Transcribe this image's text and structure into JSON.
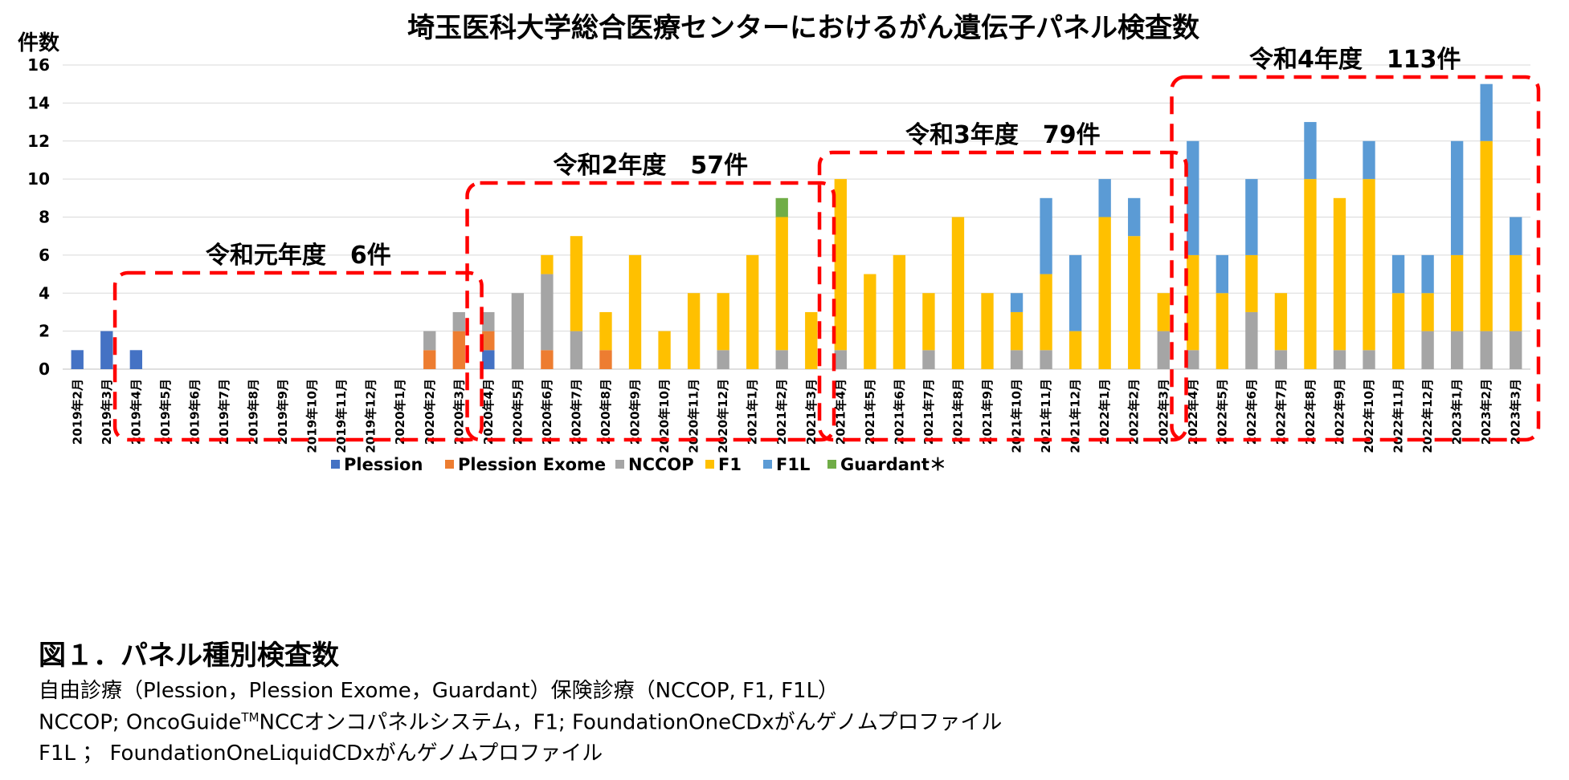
{
  "chart_data": {
    "type": "bar",
    "stacked": true,
    "title": "埼玉医科大学総合医療センターにおけるがん遺伝子パネル検査数",
    "ylabel": "件数",
    "ylim": [
      0,
      16
    ],
    "yticks": [
      "0",
      "2",
      "4",
      "6",
      "8",
      "10",
      "12",
      "14",
      "16"
    ],
    "grid": true,
    "legend_position": "bottom",
    "categories": [
      "2019年2月",
      "2019年3月",
      "2019年4月",
      "2019年5月",
      "2019年6月",
      "2019年7月",
      "2019年8月",
      "2019年9月",
      "2019年10月",
      "2019年11月",
      "2019年12月",
      "2020年1月",
      "2020年2月",
      "2020年3月",
      "2020年4月",
      "2020年5月",
      "2020年6月",
      "2020年7月",
      "2020年8月",
      "2020年9月",
      "2020年10月",
      "2020年11月",
      "2020年12月",
      "2021年1月",
      "2021年2月",
      "2021年3月",
      "2021年4月",
      "2021年5月",
      "2021年6月",
      "2021年7月",
      "2021年8月",
      "2021年9月",
      "2021年10月",
      "2021年11月",
      "2021年12月",
      "2022年1月",
      "2022年2月",
      "2022年3月",
      "2022年4月",
      "2022年5月",
      "2022年6月",
      "2022年7月",
      "2022年8月",
      "2022年9月",
      "2022年10月",
      "2022年11月",
      "2022年12月",
      "2023年1月",
      "2023年2月",
      "2023年3月"
    ],
    "series": [
      {
        "name": "Plession",
        "color": "#4472c4",
        "values": [
          1,
          2,
          1,
          0,
          0,
          0,
          0,
          0,
          0,
          0,
          0,
          0,
          0,
          0,
          1,
          0,
          0,
          0,
          0,
          0,
          0,
          0,
          0,
          0,
          0,
          0,
          0,
          0,
          0,
          0,
          0,
          0,
          0,
          0,
          0,
          0,
          0,
          0,
          0,
          0,
          0,
          0,
          0,
          0,
          0,
          0,
          0,
          0,
          0,
          0
        ]
      },
      {
        "name": "Plession Exome",
        "color": "#ed7d31",
        "values": [
          0,
          0,
          0,
          0,
          0,
          0,
          0,
          0,
          0,
          0,
          0,
          0,
          1,
          2,
          1,
          0,
          1,
          0,
          1,
          0,
          0,
          0,
          0,
          0,
          0,
          0,
          0,
          0,
          0,
          0,
          0,
          0,
          0,
          0,
          0,
          0,
          0,
          0,
          0,
          0,
          0,
          0,
          0,
          0,
          0,
          0,
          0,
          0,
          0,
          0
        ]
      },
      {
        "name": "NCCOP",
        "color": "#a5a5a5",
        "values": [
          0,
          0,
          0,
          0,
          0,
          0,
          0,
          0,
          0,
          0,
          0,
          0,
          1,
          1,
          1,
          4,
          4,
          2,
          0,
          0,
          0,
          0,
          1,
          0,
          1,
          0,
          1,
          0,
          0,
          1,
          0,
          0,
          1,
          1,
          0,
          0,
          0,
          2,
          1,
          0,
          3,
          1,
          0,
          1,
          1,
          0,
          2,
          2,
          2,
          2
        ]
      },
      {
        "name": "F1",
        "color": "#ffc000",
        "values": [
          0,
          0,
          0,
          0,
          0,
          0,
          0,
          0,
          0,
          0,
          0,
          0,
          0,
          0,
          0,
          0,
          1,
          5,
          2,
          6,
          2,
          4,
          3,
          6,
          7,
          3,
          9,
          5,
          6,
          3,
          8,
          4,
          2,
          4,
          2,
          8,
          7,
          2,
          5,
          4,
          3,
          3,
          10,
          8,
          9,
          4,
          2,
          4,
          10,
          4
        ]
      },
      {
        "name": "F1L",
        "color": "#5b9bd5",
        "values": [
          0,
          0,
          0,
          0,
          0,
          0,
          0,
          0,
          0,
          0,
          0,
          0,
          0,
          0,
          0,
          0,
          0,
          0,
          0,
          0,
          0,
          0,
          0,
          0,
          0,
          0,
          0,
          0,
          0,
          0,
          0,
          0,
          1,
          4,
          4,
          2,
          2,
          0,
          6,
          2,
          4,
          0,
          3,
          0,
          2,
          2,
          2,
          6,
          3,
          2
        ]
      },
      {
        "name": "Guardant＊",
        "color": "#70ad47",
        "values": [
          0,
          0,
          0,
          0,
          0,
          0,
          0,
          0,
          0,
          0,
          0,
          0,
          0,
          0,
          0,
          0,
          0,
          0,
          0,
          0,
          0,
          0,
          0,
          0,
          1,
          0,
          0,
          0,
          0,
          0,
          0,
          0,
          0,
          0,
          0,
          0,
          0,
          0,
          0,
          0,
          0,
          0,
          0,
          0,
          0,
          0,
          0,
          0,
          0,
          0
        ]
      }
    ],
    "annotations": [
      {
        "label": "令和元年度　6件",
        "from_index": 2,
        "to_index": 13,
        "border": "dashed-red"
      },
      {
        "label": "令和2年度　57件",
        "from_index": 14,
        "to_index": 25,
        "border": "dashed-red"
      },
      {
        "label": "令和3年度　79件",
        "from_index": 26,
        "to_index": 37,
        "border": "dashed-red"
      },
      {
        "label": "令和4年度　113件",
        "from_index": 38,
        "to_index": 49,
        "border": "dashed-red"
      }
    ]
  },
  "caption": {
    "title": "図１．パネル種別検査数",
    "line1": "自由診療（Plession，Plession Exome，Guardant）保険診療（NCCOP, F1, F1L）",
    "line2_prefix": "NCCOP; OncoGuide",
    "line2_sup": "TM",
    "line2_suffix": "NCCオンコパネルシステム，F1; FoundationOneCDxがんゲノムプロファイル",
    "line3": "F1L ； FoundationOneLiquidCDxがんゲノムプロファイル"
  }
}
